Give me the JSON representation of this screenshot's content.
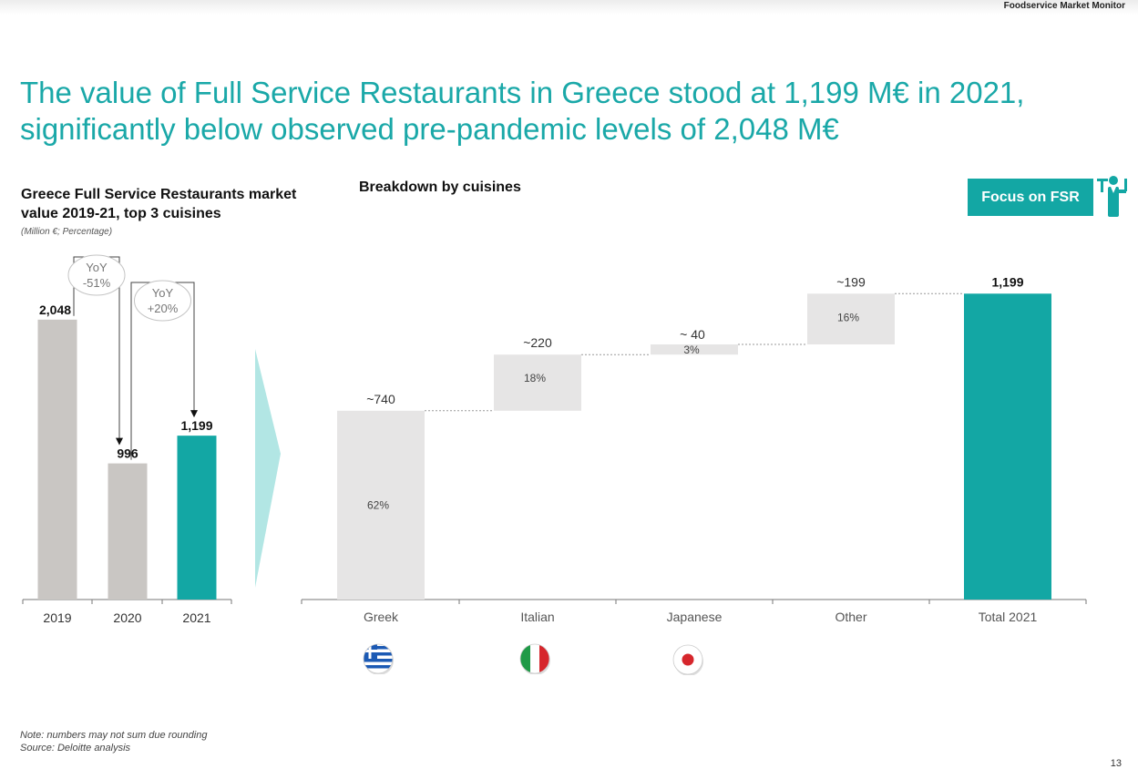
{
  "header": {
    "brand": "Foodservice Market Monitor",
    "headline": "The value of Full Service Restaurants in Greece stood at 1,199 M€ in 2021, significantly below observed pre-pandemic levels of 2,048 M€"
  },
  "focus_badge": {
    "label": "Focus on FSR",
    "icon": "waiter-icon"
  },
  "footer": {
    "note": "Note: numbers may not sum due rounding",
    "source": "Source: Deloitte analysis",
    "page": "13"
  },
  "chart_data": [
    {
      "type": "bar",
      "title": "Greece Full Service Restaurants market value 2019-21, top 3 cuisines",
      "subtitle": "(Million €; Percentage)",
      "categories": [
        "2019",
        "2020",
        "2021"
      ],
      "values": [
        2048,
        996,
        1199
      ],
      "value_labels": [
        "2,048",
        "996",
        "1,199"
      ],
      "ylim": [
        0,
        2200
      ],
      "grid": false,
      "colors": [
        "#c9c6c3",
        "#c9c6c3",
        "#13a7a4"
      ],
      "annotations": [
        {
          "from": "2019",
          "to": "2020",
          "line1": "YoY",
          "line2": "-51%"
        },
        {
          "from": "2020",
          "to": "2021",
          "line1": "YoY",
          "line2": "+20%"
        }
      ]
    },
    {
      "type": "waterfall",
      "title": "Breakdown by cuisines",
      "categories": [
        "Greek",
        "Italian",
        "Japanese",
        "Other",
        "Total 2021"
      ],
      "values": [
        740,
        220,
        40,
        199,
        1199
      ],
      "value_labels": [
        "~740",
        "~220",
        "~ 40",
        "~199",
        "1,199"
      ],
      "shares": [
        "62%",
        "18%",
        "3%",
        "16%",
        ""
      ],
      "total_index": 4,
      "ylim": [
        0,
        1350
      ],
      "grid": false,
      "colors": {
        "step": "#e6e5e5",
        "total": "#13a7a4",
        "connector": "#9a9a9a"
      },
      "flags": [
        {
          "category": "Greek",
          "icon": "greece-flag-icon"
        },
        {
          "category": "Italian",
          "icon": "italy-flag-icon"
        },
        {
          "category": "Japanese",
          "icon": "japan-flag-icon"
        }
      ]
    }
  ]
}
